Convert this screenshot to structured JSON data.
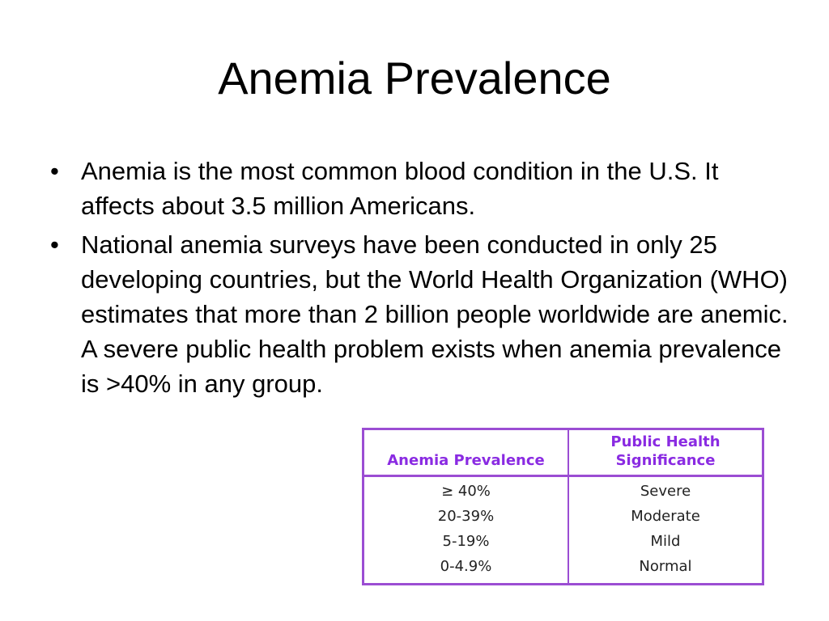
{
  "slide": {
    "title": "Anemia Prevalence",
    "bullet_symbol": "•",
    "bullets": [
      "Anemia is the most common blood condition in the U.S. It affects about 3.5 million Americans.",
      "National anemia surveys have been conducted in only 25 developing countries, but the World Health Organization (WHO) estimates that more than 2 billion people worldwide are anemic. A severe public health problem exists when anemia prevalence is >40% in any group."
    ]
  },
  "table": {
    "headers": [
      "Anemia Prevalence",
      "Public Health Significance"
    ],
    "rows": [
      {
        "prevalence": "≥ 40%",
        "significance": "Severe"
      },
      {
        "prevalence": "20-39%",
        "significance": "Moderate"
      },
      {
        "prevalence": "5-19%",
        "significance": "Mild"
      },
      {
        "prevalence": "0-4.9%",
        "significance": "Normal"
      }
    ],
    "border_color": "#9b4dd3",
    "header_color": "#8a2be2"
  }
}
